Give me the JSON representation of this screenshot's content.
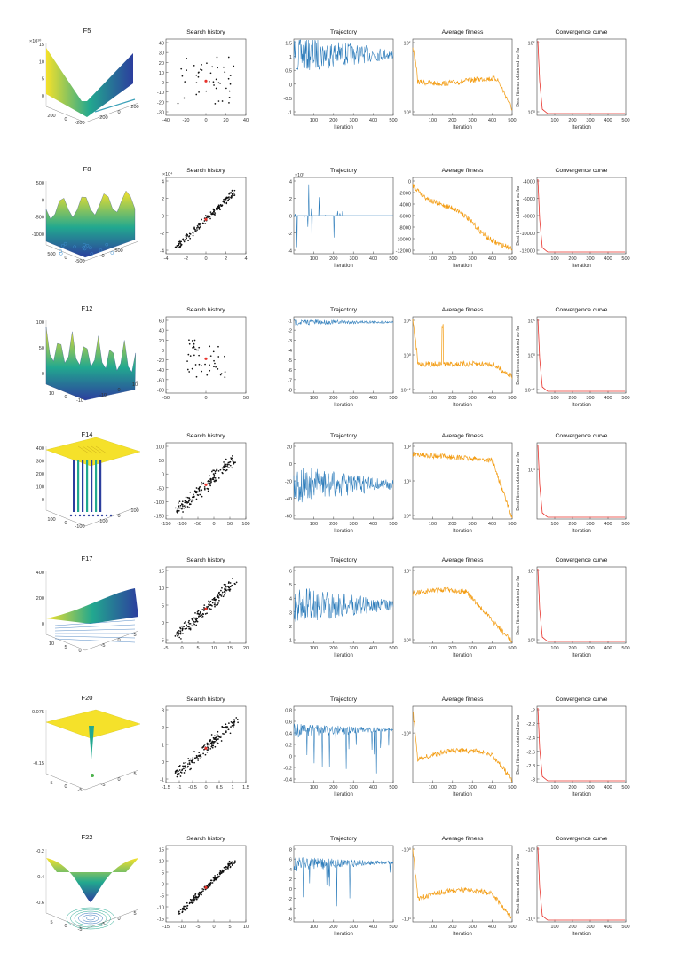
{
  "figure": {
    "panel_titles": [
      "Search history",
      "Trajectory",
      "Average fitness",
      "Convergence curve"
    ],
    "xlabel": "Iteration",
    "convergence_ylabel": "Best fitness obtained so far",
    "colors": {
      "trajectory": "#2b7bba",
      "average": "#f39c12",
      "convergence": "#e8322b",
      "points": "#111111",
      "best": "#e8322b",
      "surface_low": "#2c3e9e",
      "surface_mid": "#22a88f",
      "surface_high": "#f5e12a"
    }
  },
  "rows": [
    {
      "fname": "F5",
      "surface_kind": "valley",
      "z_exponent": "×10¹⁰",
      "surface_z_ticks": [
        "15",
        "10",
        "5",
        "0"
      ],
      "surface_x_ticks": [
        "200",
        "0",
        "-200"
      ],
      "surface_y_ticks": [
        "-200",
        "0",
        "200"
      ],
      "hist": {
        "xlim": [
          -40,
          40
        ],
        "ylim": [
          -30,
          40
        ],
        "xticks": [
          "-40",
          "-20",
          "0",
          "20",
          "40"
        ],
        "yticks": [
          "40",
          "30",
          "20",
          "10",
          "0",
          "-10",
          "-20",
          "-30"
        ],
        "exp": "",
        "spread": 0.35,
        "diag": false
      },
      "traj": {
        "yticks": [
          "1.5",
          "1",
          "0.5",
          "0",
          "-0.5",
          "-1"
        ],
        "xticks": [
          "100",
          "200",
          "300",
          "400",
          "500"
        ],
        "exp": "",
        "level": 0.2,
        "style": "noisy"
      },
      "avg": {
        "yticks": [
          "10⁵",
          "10⁰"
        ],
        "xticks": [
          "100",
          "200",
          "300",
          "400",
          "500"
        ],
        "trend": "decay-then-drop"
      },
      "conv": {
        "yticks": [
          "10⁵",
          "10⁰"
        ],
        "xticks": [
          "100",
          "200",
          "300",
          "400",
          "500"
        ],
        "exp": ""
      }
    },
    {
      "fname": "F8",
      "surface_kind": "ripple",
      "z_exponent": "",
      "surface_z_ticks": [
        "500",
        "0",
        "-500",
        "-1000"
      ],
      "surface_x_ticks": [
        "500",
        "0",
        "-500"
      ],
      "surface_y_ticks": [
        "0",
        "500"
      ],
      "hist": {
        "xlim": [
          -4,
          4
        ],
        "ylim": [
          -4,
          4
        ],
        "xticks": [
          "-4",
          "-2",
          "0",
          "2",
          "4"
        ],
        "yticks": [
          "4",
          "2",
          "0",
          "-2",
          "-4"
        ],
        "exp": "×10⁴",
        "spread": 0.06,
        "diag": true
      },
      "traj": {
        "yticks": [
          "4",
          "2",
          "0",
          "-2",
          "-4"
        ],
        "xticks": [
          "100",
          "200",
          "300",
          "400",
          "500"
        ],
        "exp": "×10⁵",
        "level": 0.5,
        "style": "spikes-early"
      },
      "avg": {
        "yticks": [
          "0",
          "-2000",
          "-4000",
          "-6000",
          "-8000",
          "-10000",
          "-12000"
        ],
        "xticks": [
          "100",
          "200",
          "300",
          "400",
          "500"
        ],
        "trend": "linear-down"
      },
      "conv": {
        "yticks": [
          "-4000",
          "-6000",
          "-8000",
          "-10000",
          "-12000"
        ],
        "xticks": [
          "100",
          "200",
          "300",
          "400",
          "500"
        ],
        "exp": ""
      }
    },
    {
      "fname": "F12",
      "surface_kind": "peaks",
      "z_exponent": "",
      "surface_z_ticks": [
        "100",
        "50",
        "0"
      ],
      "surface_x_ticks": [
        "10",
        "0",
        "-10"
      ],
      "surface_y_ticks": [
        "-10",
        "0",
        "10"
      ],
      "hist": {
        "xlim": [
          -50,
          50
        ],
        "ylim": [
          -80,
          60
        ],
        "xticks": [
          "-50",
          "0",
          "50"
        ],
        "yticks": [
          "60",
          "40",
          "20",
          "0",
          "-20",
          "-40",
          "-60",
          "-80"
        ],
        "exp": "",
        "spread": 0.25,
        "diag": false
      },
      "traj": {
        "yticks": [
          "-1",
          "-2",
          "-3",
          "-4",
          "-5",
          "-6",
          "-7",
          "-8"
        ],
        "xticks": [
          "100",
          "200",
          "300",
          "400",
          "500"
        ],
        "exp": "",
        "level": 0.07,
        "style": "flat-top"
      },
      "avg": {
        "yticks": [
          "10⁵",
          "10⁰",
          "10⁻⁵"
        ],
        "xticks": [
          "100",
          "200",
          "300",
          "400",
          "500"
        ],
        "trend": "flat-spike"
      },
      "conv": {
        "yticks": [
          "10⁵",
          "10⁰",
          "10⁻⁵"
        ],
        "xticks": [
          "100",
          "200",
          "300",
          "400",
          "500"
        ],
        "exp": ""
      }
    },
    {
      "fname": "F14",
      "surface_kind": "plateau",
      "z_exponent": "",
      "surface_z_ticks": [
        "400",
        "300",
        "200",
        "100",
        "0"
      ],
      "surface_x_ticks": [
        "100",
        "0",
        "-100"
      ],
      "surface_y_ticks": [
        "-100",
        "0",
        "100"
      ],
      "hist": {
        "xlim": [
          -150,
          100
        ],
        "ylim": [
          -150,
          100
        ],
        "xticks": [
          "-150",
          "-100",
          "-50",
          "0",
          "50",
          "100"
        ],
        "yticks": [
          "100",
          "50",
          "0",
          "-50",
          "-100",
          "-150"
        ],
        "exp": "",
        "spread": 0.12,
        "diag": true
      },
      "traj": {
        "yticks": [
          "20",
          "0",
          "-20",
          "-40",
          "-60"
        ],
        "xticks": [
          "100",
          "200",
          "300",
          "400",
          "500"
        ],
        "exp": "",
        "level": 0.55,
        "style": "noisy"
      },
      "avg": {
        "yticks": [
          "10²",
          "10¹",
          "10⁰"
        ],
        "xticks": [
          "100",
          "200",
          "300",
          "400",
          "500"
        ],
        "trend": "flat-then-crash"
      },
      "conv": {
        "yticks": [
          "10¹"
        ],
        "xticks": [
          "100",
          "200",
          "300",
          "400",
          "500"
        ],
        "exp": ""
      }
    },
    {
      "fname": "F17",
      "surface_kind": "sheet",
      "z_exponent": "",
      "surface_z_ticks": [
        "400",
        "200",
        "0"
      ],
      "surface_x_ticks": [
        "10",
        "5",
        "0"
      ],
      "surface_y_ticks": [
        "-5",
        "0",
        "5"
      ],
      "hist": {
        "xlim": [
          -5,
          20
        ],
        "ylim": [
          -5,
          15
        ],
        "xticks": [
          "-5",
          "0",
          "5",
          "10",
          "15",
          "20"
        ],
        "yticks": [
          "15",
          "10",
          "5",
          "0",
          "-5"
        ],
        "exp": "",
        "spread": 0.1,
        "diag": true
      },
      "traj": {
        "yticks": [
          "6",
          "5",
          "4",
          "3",
          "2",
          "1"
        ],
        "xticks": [
          "100",
          "200",
          "300",
          "400",
          "500"
        ],
        "exp": "",
        "level": 0.5,
        "style": "noisy"
      },
      "avg": {
        "yticks": [
          "10¹",
          "10⁰"
        ],
        "xticks": [
          "100",
          "200",
          "300",
          "400",
          "500"
        ],
        "trend": "flat-then-decay"
      },
      "conv": {
        "yticks": [
          "10¹",
          "10⁰"
        ],
        "xticks": [
          "100",
          "200",
          "300",
          "400",
          "500"
        ],
        "exp": ""
      }
    },
    {
      "fname": "F20",
      "surface_kind": "spike",
      "z_exponent": "",
      "surface_z_ticks": [
        "-0.075",
        "-0.15"
      ],
      "surface_x_ticks": [
        "5",
        "0",
        "-5"
      ],
      "surface_y_ticks": [
        "-5",
        "0",
        "5"
      ],
      "hist": {
        "xlim": [
          -1.5,
          1.5
        ],
        "ylim": [
          -1,
          3
        ],
        "xticks": [
          "-1.5",
          "-1",
          "-0.5",
          "0",
          "0.5",
          "1",
          "1.5"
        ],
        "yticks": [
          "3",
          "2",
          "1",
          "0",
          "-1"
        ],
        "exp": "",
        "spread": 0.12,
        "diag": true
      },
      "traj": {
        "yticks": [
          "0.8",
          "0.6",
          "0.4",
          "0.2",
          "0",
          "-0.2",
          "-0.4"
        ],
        "xticks": [
          "100",
          "200",
          "300",
          "400",
          "500"
        ],
        "exp": "",
        "level": 0.3,
        "style": "spikes-down"
      },
      "avg": {
        "yticks": [
          "-10⁰"
        ],
        "xticks": [
          "100",
          "200",
          "300",
          "400",
          "500"
        ],
        "trend": "hump-bottom"
      },
      "conv": {
        "yticks": [
          "-2",
          "-2.2",
          "-2.4",
          "-2.6",
          "-2.8",
          "-3"
        ],
        "xticks": [
          "100",
          "200",
          "300",
          "400",
          "500"
        ],
        "exp": ""
      }
    },
    {
      "fname": "F22",
      "surface_kind": "funnel",
      "z_exponent": "",
      "surface_z_ticks": [
        "-0.2",
        "-0.4",
        "-0.6"
      ],
      "surface_x_ticks": [
        "5",
        "0",
        "-5"
      ],
      "surface_y_ticks": [
        "-5",
        "0",
        "5"
      ],
      "hist": {
        "xlim": [
          -15,
          10
        ],
        "ylim": [
          -15,
          15
        ],
        "xticks": [
          "-15",
          "-10",
          "-5",
          "0",
          "5",
          "10"
        ],
        "yticks": [
          "15",
          "10",
          "5",
          "0",
          "-5",
          "-10",
          "-15"
        ],
        "exp": "",
        "spread": 0.05,
        "diag": true
      },
      "traj": {
        "yticks": [
          "8",
          "6",
          "4",
          "2",
          "0",
          "-2",
          "-4",
          "-6"
        ],
        "xticks": [
          "100",
          "200",
          "300",
          "400",
          "500"
        ],
        "exp": "",
        "level": 0.22,
        "style": "spikes-down"
      },
      "avg": {
        "yticks": [
          "-10⁰",
          "-10¹"
        ],
        "xticks": [
          "100",
          "200",
          "300",
          "400",
          "500"
        ],
        "trend": "hump-bottom"
      },
      "conv": {
        "yticks": [
          "-10⁰",
          "-10¹"
        ],
        "xticks": [
          "100",
          "200",
          "300",
          "400",
          "500"
        ],
        "exp": ""
      }
    }
  ],
  "chart_data": [
    {
      "type": "line",
      "title": "Convergence curve",
      "xlabel": "Iteration",
      "ylabel": "Best fitness obtained so far",
      "xlim": [
        0,
        500
      ],
      "series": [
        {
          "name": "F8",
          "values": [
            -4000,
            -12000
          ]
        },
        {
          "name": "F20",
          "values": [
            -2.0,
            -3.0
          ]
        }
      ]
    },
    {
      "type": "line",
      "title": "Average fitness",
      "xlabel": "Iteration",
      "xlim": [
        0,
        500
      ],
      "series": [
        {
          "name": "F8",
          "values": [
            0,
            -12000
          ]
        }
      ]
    }
  ]
}
